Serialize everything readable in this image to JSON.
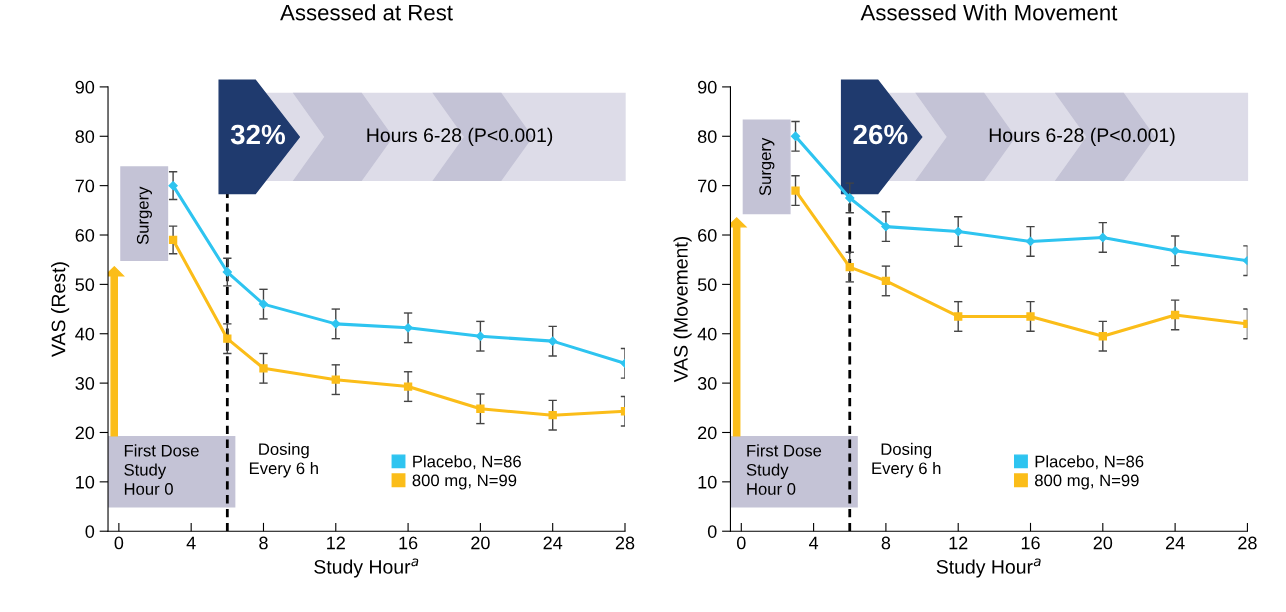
{
  "chart_data": [
    {
      "type": "line",
      "title": "Assessed at Rest",
      "xlabel": "Study Hour$^{a}$",
      "ylabel": "VAS (Rest)",
      "x": [
        3,
        6,
        8,
        12,
        16,
        20,
        24,
        28
      ],
      "series": [
        {
          "name": "Placebo, N=86",
          "color": "#2ec4f0",
          "marker": "diamond",
          "values": [
            70,
            52.5,
            46,
            42,
            41.2,
            39.5,
            38.5,
            34
          ],
          "errors": [
            2.8,
            2.8,
            3,
            3,
            3,
            3,
            3,
            3
          ]
        },
        {
          "name": "800 mg, N=99",
          "color": "#fbbd19",
          "marker": "square",
          "values": [
            59,
            39,
            33,
            30.7,
            29.3,
            24.8,
            23.5,
            24.3
          ],
          "errors": [
            2.8,
            3,
            3,
            3,
            3,
            3,
            3,
            3
          ]
        }
      ],
      "xlim": [
        -0.6,
        28
      ],
      "xticks": [
        0,
        4,
        8,
        12,
        16,
        20,
        24,
        28
      ],
      "ylim": [
        0,
        90
      ],
      "yticks": [
        0,
        10,
        20,
        30,
        40,
        50,
        60,
        70,
        80,
        90
      ],
      "ref_lines": [
        {
          "axis": "x",
          "value": 6,
          "line_style": "dashed",
          "color": "#000000"
        }
      ],
      "annotations": [
        "32%",
        "Hours 6-28 (P<0.001)",
        "Surgery",
        "First Dose\nStudy\nHour 0",
        "Dosing\nEvery 6 h"
      ],
      "legend": "bottom right",
      "grid": false
    },
    {
      "type": "line",
      "title": "Assessed With Movement",
      "xlabel": "Study Hour$^{a}$",
      "ylabel": "VAS (Movement)",
      "x": [
        3,
        6,
        8,
        12,
        16,
        20,
        24,
        28
      ],
      "series": [
        {
          "name": "Placebo, N=86",
          "color": "#2ec4f0",
          "marker": "diamond",
          "values": [
            80,
            67.5,
            61.7,
            60.7,
            58.7,
            59.5,
            56.8,
            54.8
          ],
          "errors": [
            3,
            3,
            3,
            3,
            3,
            3,
            3,
            3
          ]
        },
        {
          "name": "800 mg, N=99",
          "color": "#fbbd19",
          "marker": "square",
          "values": [
            69,
            53.5,
            50.7,
            43.5,
            43.5,
            39.5,
            43.8,
            42
          ],
          "errors": [
            3,
            3,
            3,
            3,
            3,
            3,
            3,
            3
          ]
        }
      ],
      "xlim": [
        -0.6,
        28
      ],
      "xticks": [
        0,
        4,
        8,
        12,
        16,
        20,
        24,
        28
      ],
      "ylim": [
        0,
        90
      ],
      "yticks": [
        0,
        10,
        20,
        30,
        40,
        50,
        60,
        70,
        80,
        90
      ],
      "ref_lines": [
        {
          "axis": "x",
          "value": 6,
          "line_style": "dashed",
          "color": "#000000"
        }
      ],
      "annotations": [
        "26%",
        "Hours 6-28 (P<0.001)",
        "Surgery",
        "First Dose\nStudy\nHour 0",
        "Dosing\nEvery 6 h"
      ],
      "legend": "bottom right",
      "grid": false
    }
  ]
}
